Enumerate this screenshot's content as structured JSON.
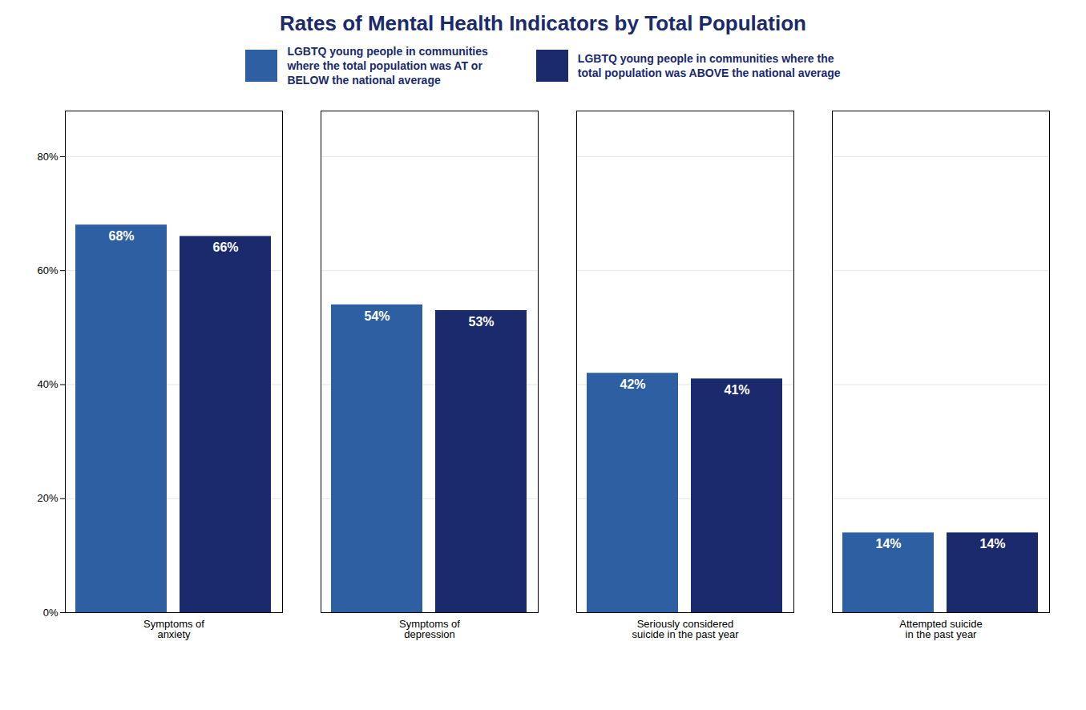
{
  "chart_data": {
    "type": "bar",
    "title": "Rates of Mental Health Indicators by Total Population",
    "categories": [
      "Symptoms of\nanxiety",
      "Symptoms of\ndepression",
      "Seriously considered\nsuicide in the past year",
      "Attempted suicide\nin the past year"
    ],
    "series": [
      {
        "name": "LGBTQ young people in communities\nwhere the total population was AT or\nBELOW the national average",
        "color": "#2E5FA3",
        "values": [
          0.68,
          0.54,
          0.42,
          0.14
        ],
        "value_labels": [
          "68%",
          "54%",
          "42%",
          "14%"
        ]
      },
      {
        "name": "LGBTQ young people in communities where the\ntotal population was ABOVE the national average",
        "color": "#1A2A6C",
        "values": [
          0.66,
          0.53,
          0.41,
          0.14
        ],
        "value_labels": [
          "66%",
          "53%",
          "41%",
          "14%"
        ]
      }
    ],
    "ylim": [
      0,
      0.88
    ],
    "yticks": [
      {
        "value": 0.0,
        "label": "0%"
      },
      {
        "value": 0.2,
        "label": "20%"
      },
      {
        "value": 0.4,
        "label": "40%"
      },
      {
        "value": 0.6,
        "label": "60%"
      },
      {
        "value": 0.8,
        "label": "80%"
      }
    ],
    "grid": true,
    "legend": "top",
    "data_labels": true
  }
}
